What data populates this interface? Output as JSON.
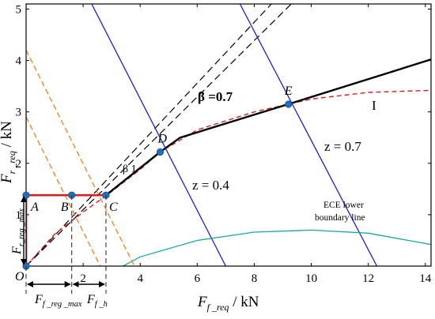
{
  "chart_data": {
    "type": "line",
    "xlim": [
      0,
      14.2
    ],
    "ylim": [
      0,
      5.1
    ],
    "x_ticks": [
      2,
      4,
      6,
      8,
      10,
      12,
      14
    ],
    "y_ticks": [
      1,
      2,
      3,
      4,
      5
    ],
    "x_tick_labels": [
      "2",
      "4",
      "6",
      "8",
      "10",
      "12",
      "14"
    ],
    "y_tick_labels": [
      "1",
      "2",
      "3",
      "4",
      "5"
    ],
    "xlabel": {
      "main": "F",
      "sub": "f _req",
      "unit": " / kN"
    },
    "ylabel": {
      "main": "F",
      "sub": "r _req",
      "unit": " / kN"
    },
    "grid": false,
    "colors": {
      "beta_line": "#000000",
      "ideal_curve": "#e41a1c",
      "z_lines": "#1f1fcf",
      "ece_lower": "#1aa99a",
      "orange_dashed": "#f07f20",
      "red_polyline": "#d62020",
      "points": "#1f6fbf"
    },
    "series": [
      {
        "name": "β 1",
        "kind": "dashed-black",
        "x": [
          0,
          8.6
        ],
        "y": [
          0,
          5.1
        ]
      },
      {
        "kind": "dashed-black",
        "x": [
          0,
          9.3
        ],
        "y": [
          0,
          5.1
        ]
      },
      {
        "name": "I",
        "kind": "dashed-red",
        "x": [
          0,
          1,
          2,
          3,
          4,
          4.7,
          6,
          8,
          10,
          12,
          14.2
        ],
        "y": [
          0,
          0.62,
          1.05,
          1.45,
          1.88,
          2.22,
          2.65,
          3.0,
          3.25,
          3.38,
          3.42
        ]
      },
      {
        "name": "β =0.7",
        "kind": "solid-black",
        "x": [
          2.8,
          4.7,
          5.4,
          9.2,
          14.2
        ],
        "y": [
          1.38,
          2.22,
          2.5,
          3.15,
          4.02
        ]
      },
      {
        "name": "z = 0.4",
        "kind": "solid-blue",
        "x": [
          2.3,
          7.0
        ],
        "y": [
          5.1,
          0
        ]
      },
      {
        "name": "z = 0.7",
        "kind": "solid-blue",
        "x": [
          7.5,
          12.3
        ],
        "y": [
          5.1,
          0
        ]
      },
      {
        "name": "ECE lower boundary line",
        "kind": "solid-teal",
        "x": [
          3.4,
          4,
          6,
          8,
          10,
          12,
          14.2
        ],
        "y": [
          0,
          0.18,
          0.5,
          0.66,
          0.7,
          0.64,
          0.42
        ]
      },
      {
        "kind": "dashed-orange",
        "x": [
          0,
          3.8
        ],
        "y": [
          4.2,
          0
        ]
      },
      {
        "kind": "dashed-orange",
        "x": [
          0,
          2.6
        ],
        "y": [
          2.9,
          0
        ]
      }
    ],
    "red_polyline": {
      "x": [
        0,
        0,
        2.8
      ],
      "y": [
        0,
        1.38,
        1.38
      ]
    },
    "points": [
      {
        "label": "O",
        "x": 0,
        "y": 0
      },
      {
        "label": "A",
        "x": 0,
        "y": 1.38
      },
      {
        "label": "B",
        "x": 1.6,
        "y": 1.38
      },
      {
        "label": "C",
        "x": 2.8,
        "y": 1.38
      },
      {
        "label": "D",
        "x": 4.7,
        "y": 2.22
      },
      {
        "label": "E",
        "x": 9.2,
        "y": 3.15
      }
    ],
    "annotations": {
      "beta07": "β =0.7",
      "beta1": "β 1",
      "z04": "z = 0.4",
      "z07": "z = 0.7",
      "curve_I": "I",
      "ece_line1": "ECE lower",
      "ece_line2": "boundary line",
      "fr_reg_max_main": "F",
      "fr_reg_max_sub": "r_reg _max",
      "ff_reg_max_main": "F",
      "ff_reg_max_sub": "f _reg _max",
      "ff_h_main": "F",
      "ff_h_sub": "f _h"
    }
  }
}
